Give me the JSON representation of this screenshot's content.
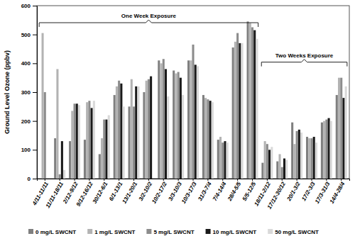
{
  "chart_data": {
    "type": "bar",
    "y_label": "Ground Level Ozone (ppbv)",
    "annotations": [
      "One Week Exposure",
      "Two Weeks Exposure"
    ],
    "categories": [
      "4/11-11/11",
      "11/11-18/11",
      "2/12-9/12",
      "9/12-16/12",
      "30/12-6/1",
      "6/1-13/1",
      "13/1-20/1",
      "3/2-10/2",
      "10/2-17/2",
      "3/3-10/3",
      "10/3-17/3",
      "31/3-7/4",
      "7/4-14/4",
      "28/4-5/5",
      "5/5-12/5",
      "18/11-2/12",
      "17/12-30/12",
      "20/1-3/2",
      "17/2-3/3",
      "17/3-31/3",
      "14/4-28/4"
    ],
    "series": [
      {
        "name": "0 mg/L SWCNT",
        "color": "#7f7f7f",
        "values": [
          null,
          140,
          130,
          135,
          85,
          290,
          250,
          300,
          410,
          375,
          410,
          290,
          135,
          455,
          545,
          55,
          60,
          195,
          145,
          195,
          290
        ]
      },
      {
        "name": "1 mg/L SWCNT",
        "color": "#b3b3b3",
        "values": [
          505,
          380,
          235,
          265,
          140,
          320,
          345,
          340,
          400,
          365,
          410,
          280,
          145,
          475,
          540,
          130,
          85,
          120,
          140,
          200,
          350
        ]
      },
      {
        "name": "5 mg/L SWCNT",
        "color": "#8c8c8c",
        "values": [
          300,
          15,
          260,
          270,
          205,
          340,
          250,
          345,
          415,
          370,
          465,
          275,
          125,
          505,
          525,
          120,
          40,
          165,
          140,
          205,
          350
        ]
      },
      {
        "name": "10 mg/L SWCNT",
        "color": "#1a1a1a",
        "values": [
          null,
          130,
          260,
          245,
          205,
          330,
          320,
          355,
          380,
          350,
          395,
          270,
          130,
          470,
          515,
          100,
          70,
          170,
          145,
          210,
          280
        ]
      },
      {
        "name": "50 mg/L SWCNT",
        "color": "#d9d9d9",
        "values": [
          null,
          30,
          255,
          270,
          220,
          250,
          320,
          null,
          285,
          290,
          390,
          265,
          125,
          470,
          485,
          110,
          65,
          160,
          125,
          200,
          320
        ]
      }
    ],
    "ylim": [
      0,
      600
    ],
    "yticks": [
      0,
      100,
      200,
      300,
      400,
      500,
      600
    ],
    "grid": false,
    "legend": "bottom"
  }
}
